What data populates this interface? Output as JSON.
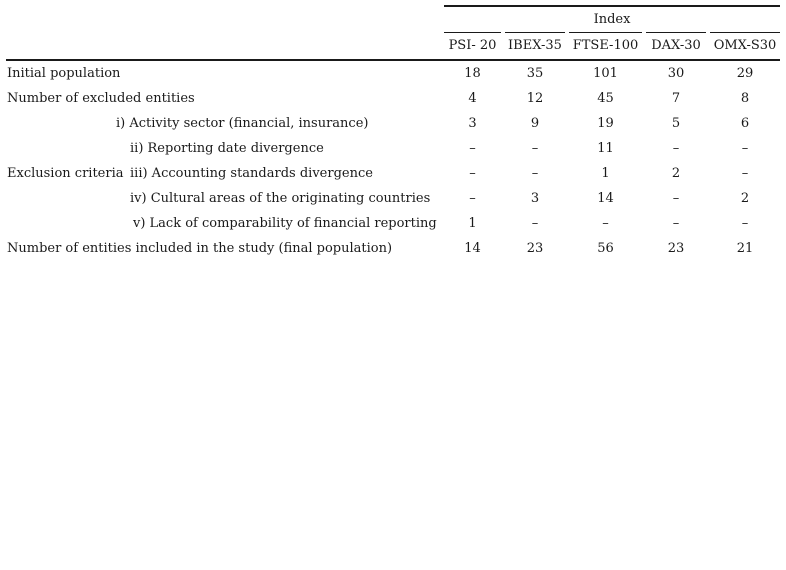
{
  "header": {
    "group_label": "Index",
    "columns": [
      "PSI- 20",
      "IBEX-35",
      "FTSE-100",
      "DAX-30",
      "OMX-S30"
    ]
  },
  "group_label_exclusion": "Exclusion criteria",
  "rows": [
    {
      "label": "Initial population",
      "values": [
        "18",
        "35",
        "101",
        "30",
        "29"
      ]
    },
    {
      "label": "Number of excluded entities",
      "values": [
        "4",
        "12",
        "45",
        "7",
        "8"
      ]
    },
    {
      "label": "i) Activity sector (financial, insurance)",
      "values": [
        "3",
        "9",
        "19",
        "5",
        "6"
      ]
    },
    {
      "label": "ii) Reporting date divergence",
      "values": [
        "–",
        "–",
        "11",
        "–",
        "–"
      ]
    },
    {
      "label": "iii) Accounting standards divergence",
      "values": [
        "–",
        "–",
        "1",
        "2",
        "–"
      ]
    },
    {
      "label": "iv) Cultural areas of the originating countries",
      "values": [
        "–",
        "3",
        "14",
        "–",
        "2"
      ]
    },
    {
      "label": "v) Lack of comparability of financial reporting",
      "values": [
        "1",
        "–",
        "–",
        "–",
        "–"
      ]
    },
    {
      "label": "Number of entities included in the study (final population)",
      "values": [
        "14",
        "23",
        "56",
        "23",
        "21"
      ]
    }
  ]
}
